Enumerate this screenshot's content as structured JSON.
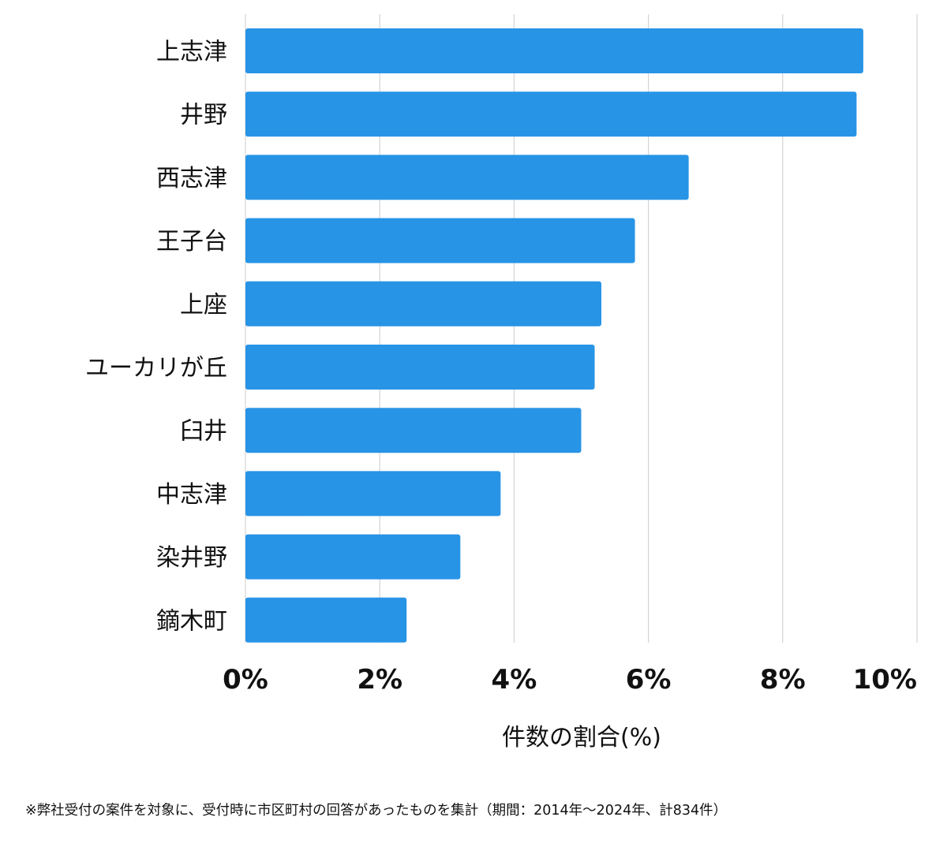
{
  "chart_data": {
    "type": "bar",
    "orientation": "horizontal",
    "categories": [
      "上志津",
      "井野",
      "西志津",
      "王子台",
      "上座",
      "ユーカリが丘",
      "臼井",
      "中志津",
      "染井野",
      "鏑木町"
    ],
    "values": [
      9.2,
      9.1,
      6.6,
      5.8,
      5.3,
      5.2,
      5.0,
      3.8,
      3.2,
      2.4
    ],
    "x_ticks": [
      0,
      2,
      4,
      6,
      8,
      10
    ],
    "x_tick_labels": [
      "0%",
      "2%",
      "4%",
      "6%",
      "8%",
      "10%"
    ],
    "xlim": [
      0,
      10
    ],
    "xlabel": "件数の割合(%)",
    "ylabel": "",
    "title": "",
    "grid": true,
    "bar_color": "#2794e6",
    "grid_color": "#d4d4d4"
  },
  "footnote": "※弊社受付の案件を対象に、受付時に市区町村の回答があったものを集計（期間：2014年～2024年、計834件）"
}
